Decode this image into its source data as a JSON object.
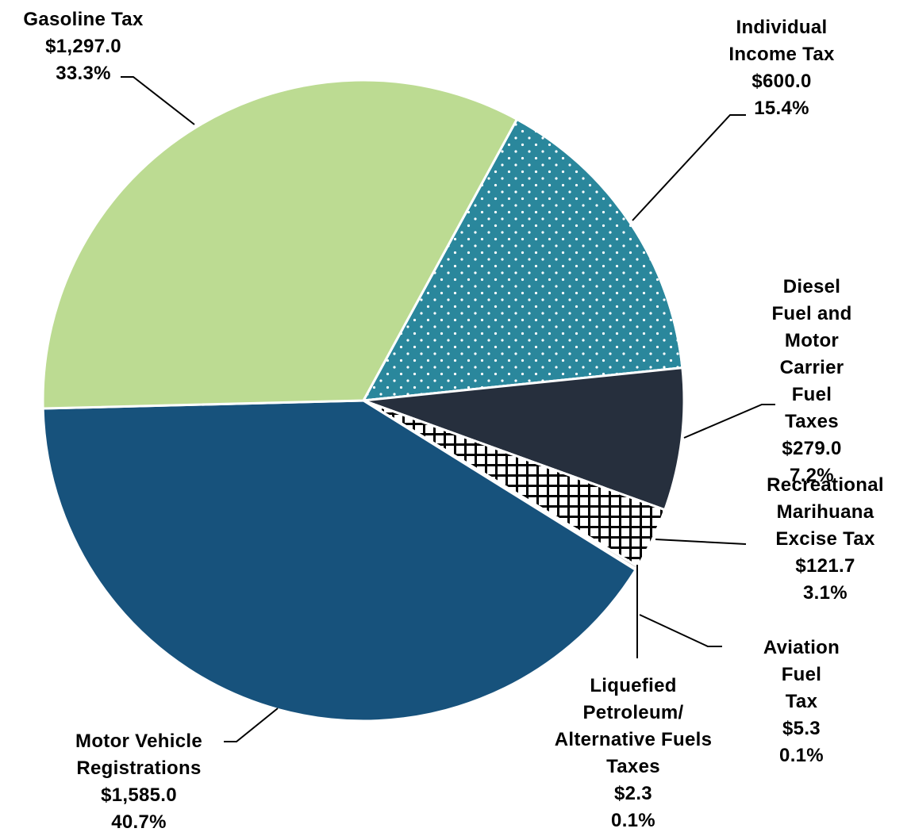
{
  "chart_data": {
    "type": "pie",
    "categories": [
      "Individual\nIncome Tax",
      "Diesel Fuel and\nMotor Carrier\nFuel Taxes",
      "Recreational\nMarihuana\nExcise Tax",
      "Aviation Fuel\nTax",
      "Liquefied\nPetroleum/\nAlternative Fuels\nTaxes",
      "Motor Vehicle\nRegistrations",
      "Gasoline Tax"
    ],
    "values": [
      600.0,
      279.0,
      121.7,
      5.3,
      2.3,
      1585.0,
      1297.0
    ],
    "value_labels": [
      "$600.0",
      "$279.0",
      "$121.7",
      "$5.3",
      "$2.3",
      "$1,585.0",
      "$1,297.0"
    ],
    "percent_labels": [
      "15.4%",
      "7.2%",
      "3.1%",
      "0.1%",
      "0.1%",
      "40.7%",
      "33.3%"
    ],
    "colors": [
      "#2a879c",
      "#262f3d",
      "#ffffff",
      "#7f7f7f",
      "#d9d9d9",
      "#17527c",
      "#bcdb92"
    ],
    "hatch": [
      "dots",
      null,
      "cross",
      null,
      null,
      null,
      null
    ]
  }
}
